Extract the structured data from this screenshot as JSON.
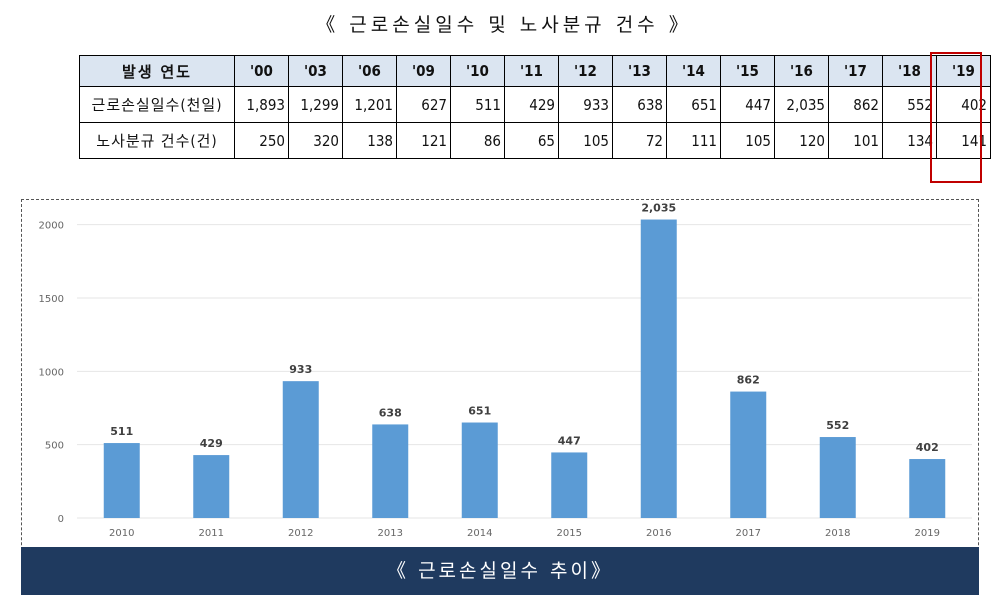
{
  "page_title": "《 근로손실일수 및 노사분규 건수 》",
  "table": {
    "header_label": "발생 연도",
    "years": [
      "'00",
      "'03",
      "'06",
      "'09",
      "'10",
      "'11",
      "'12",
      "'13",
      "'14",
      "'15",
      "'16",
      "'17",
      "'18",
      "'19"
    ],
    "rows": [
      {
        "label": "근로손실일수(천일)",
        "values": [
          "1,893",
          "1,299",
          "1,201",
          "627",
          "511",
          "429",
          "933",
          "638",
          "651",
          "447",
          "2,035",
          "862",
          "552",
          "402"
        ]
      },
      {
        "label": "노사분규 건수(건)",
        "values": [
          "250",
          "320",
          "138",
          "121",
          "86",
          "65",
          "105",
          "72",
          "111",
          "105",
          "120",
          "101",
          "134",
          "141"
        ]
      }
    ],
    "highlight_year": "'19",
    "highlight_color": "#c00000",
    "header_bg": "#dbe5f1"
  },
  "chart_data": {
    "type": "bar",
    "categories": [
      "2010",
      "2011",
      "2012",
      "2013",
      "2014",
      "2015",
      "2016",
      "2017",
      "2018",
      "2019"
    ],
    "values": [
      511,
      429,
      933,
      638,
      651,
      447,
      2035,
      862,
      552,
      402
    ],
    "data_labels": [
      "511",
      "429",
      "933",
      "638",
      "651",
      "447",
      "2,035",
      "862",
      "552",
      "402"
    ],
    "yticks": [
      0,
      500,
      1000,
      1500,
      2000
    ],
    "ylim": [
      0,
      2100
    ],
    "grid": true,
    "bar_color": "#5b9bd5",
    "title": "",
    "xlabel": "",
    "ylabel": ""
  },
  "caption": "《 근로손실일수 추이》",
  "caption_bg": "#1f3a5f"
}
